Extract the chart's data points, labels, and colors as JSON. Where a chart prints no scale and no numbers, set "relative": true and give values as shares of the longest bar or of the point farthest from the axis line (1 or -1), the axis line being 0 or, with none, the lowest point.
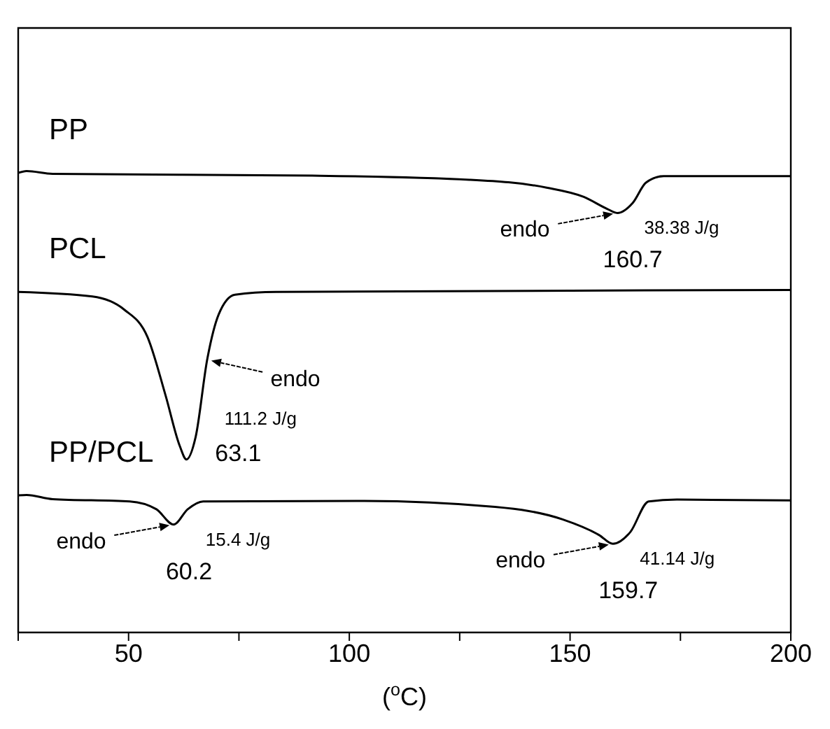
{
  "chart_data": {
    "type": "line",
    "relative": true,
    "xlabel": "($^{o}$C)",
    "xlim": [
      25,
      200
    ],
    "xticks": [
      {
        "value": 25,
        "label": null
      },
      50,
      {
        "value": 75,
        "label": null
      },
      100,
      {
        "value": 125,
        "label": null
      },
      150,
      {
        "value": 175,
        "label": null
      },
      200
    ],
    "series": [
      {
        "name": "PP",
        "color": "#000000",
        "x": [
          25,
          26.9,
          32.8,
          91.6,
          127.2,
          144.7,
          153.1,
          158.4,
          160.7,
          164.2,
          167.2,
          171.2,
          200
        ],
        "values": [
          0.996,
          1,
          0.994,
          0.99,
          0.981,
          0.964,
          0.944,
          0.918,
          0.909,
          0.931,
          0.975,
          0.989,
          0.989
        ]
      },
      {
        "name": "PCL",
        "color": "#000000",
        "x": [
          25,
          41.8,
          49.1,
          54.3,
          58.4,
          61.6,
          63.1,
          65.2,
          67.8,
          70.4,
          74.1,
          83.4,
          200
        ],
        "values": [
          0.738,
          0.728,
          0.699,
          0.64,
          0.513,
          0.404,
          0.375,
          0.424,
          0.591,
          0.689,
          0.732,
          0.738,
          0.742
        ]
      },
      {
        "name": "PP/PCL",
        "color": "#000000",
        "x": [
          25,
          26.9,
          32.8,
          50.3,
          56.3,
          60.2,
          63.4,
          66.9,
          103.4,
          133,
          148.3,
          156.6,
          159.7,
          163.6,
          167.8,
          174.2,
          200
        ],
        "values": [
          0.297,
          0.298,
          0.289,
          0.284,
          0.267,
          0.234,
          0.267,
          0.284,
          0.285,
          0.272,
          0.245,
          0.211,
          0.192,
          0.217,
          0.284,
          0.288,
          0.286
        ]
      }
    ],
    "annotations": [
      "endo",
      {
        "text": "38.38 J/g",
        "x": 160.7,
        "y": 0.909
      },
      {
        "text": "160.7",
        "x": 160.7,
        "y": 0.909
      },
      {
        "text": "endo",
        "x": 67.8,
        "y": 0.591
      },
      {
        "text": "111.2 J/g",
        "x": 63.1,
        "y": 0.375
      },
      {
        "text": "63.1",
        "x": 63.1,
        "y": 0.375
      },
      "endo",
      {
        "text": "15.4 J/g",
        "x": 60.2,
        "y": 0.234
      },
      {
        "text": "60.2",
        "x": 60.2,
        "y": 0.234
      },
      "endo",
      {
        "text": "41.14 J/g",
        "x": 159.7,
        "y": 0.192
      },
      {
        "text": "159.7",
        "x": 159.7,
        "y": 0.192
      }
    ]
  }
}
